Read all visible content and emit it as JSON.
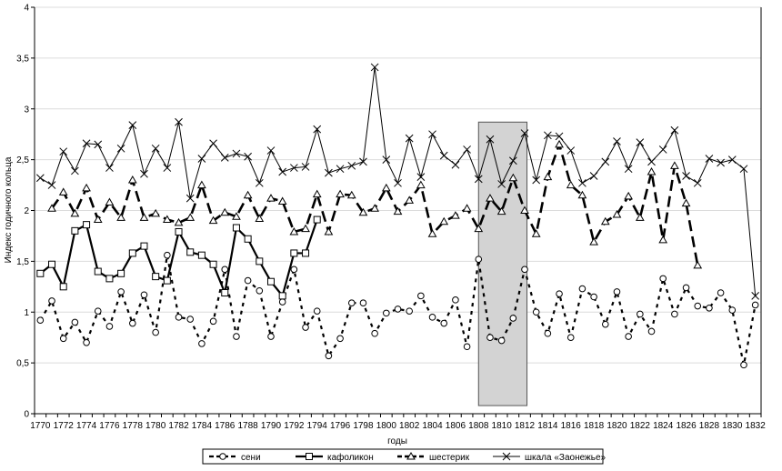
{
  "chart_data": {
    "type": "line",
    "title": "",
    "xlabel": "годы",
    "ylabel": "Индекс годичного кольца",
    "ylim": [
      0,
      4
    ],
    "yticks": [
      "0",
      "0,5",
      "1",
      "1,5",
      "2",
      "2,5",
      "3",
      "3,5",
      "4"
    ],
    "xrange": [
      1770,
      1832
    ],
    "xtick_labels": [
      "1770",
      "1772",
      "1774",
      "1776",
      "1778",
      "1780",
      "1782",
      "1784",
      "1786",
      "1788",
      "1790",
      "1792",
      "1794",
      "1796",
      "1798",
      "1800",
      "1802",
      "1804",
      "1806",
      "1808",
      "1810",
      "1812",
      "1814",
      "1816",
      "1818",
      "1820",
      "1822",
      "1824",
      "1826",
      "1828",
      "1830",
      "1832"
    ],
    "grid": true,
    "legend_placement": "bottom",
    "highlight": {
      "x": [
        1808,
        1812.2
      ],
      "y": [
        0.08,
        2.87
      ],
      "color": "#d3d3d3"
    },
    "series": [
      {
        "name": "сени",
        "marker": "circle",
        "line": "dotted",
        "start": 1770,
        "values": [
          0.92,
          1.11,
          0.74,
          0.9,
          0.7,
          1.01,
          0.86,
          1.2,
          0.89,
          1.17,
          0.8,
          1.56,
          0.95,
          0.93,
          0.69,
          0.91,
          1.42,
          0.76,
          1.31,
          1.21,
          0.76,
          1.1,
          1.42,
          0.85,
          1.01,
          0.57,
          0.74,
          1.09,
          1.09,
          0.79,
          0.99,
          1.03,
          1.01,
          1.16,
          0.95,
          0.89,
          1.12,
          0.66,
          1.52,
          0.75,
          0.72,
          0.94,
          1.42,
          1.0,
          0.79,
          1.18,
          0.75,
          1.23,
          1.15,
          0.88,
          1.2,
          0.76,
          0.98,
          0.81,
          1.33,
          0.98,
          1.24,
          1.06,
          1.04,
          1.19,
          1.02,
          0.48,
          1.07
        ]
      },
      {
        "name": "кафоликон",
        "marker": "square",
        "line": "solid-thick",
        "start": 1770,
        "values": [
          1.38,
          1.47,
          1.25,
          1.8,
          1.86,
          1.4,
          1.33,
          1.38,
          1.58,
          1.65,
          1.35,
          1.31,
          1.79,
          1.59,
          1.56,
          1.47,
          1.19,
          1.83,
          1.72,
          1.5,
          1.3,
          1.16,
          1.58,
          1.58,
          1.91
        ]
      },
      {
        "name": "шестерик",
        "marker": "triangle",
        "line": "dashed",
        "start": 1771,
        "values": [
          2.02,
          2.18,
          1.97,
          2.22,
          1.91,
          2.08,
          1.93,
          2.3,
          1.93,
          1.97,
          1.91,
          1.88,
          1.93,
          2.25,
          1.9,
          1.98,
          1.94,
          2.15,
          1.92,
          2.12,
          2.09,
          1.79,
          1.82,
          2.16,
          1.79,
          2.16,
          2.15,
          1.98,
          2.02,
          2.22,
          1.99,
          2.1,
          2.25,
          1.77,
          1.89,
          1.95,
          2.02,
          1.82,
          2.12,
          1.99,
          2.32,
          2.0,
          1.77,
          2.33,
          2.65,
          2.25,
          2.15,
          1.69,
          1.89,
          1.96,
          2.14,
          1.93,
          2.38,
          1.71,
          2.44,
          2.07,
          1.46
        ]
      },
      {
        "name": "шкала «Заонежье»",
        "marker": "x",
        "line": "solid-thin",
        "start": 1770,
        "values": [
          2.32,
          2.25,
          2.58,
          2.39,
          2.66,
          2.65,
          2.42,
          2.61,
          2.84,
          2.36,
          2.61,
          2.42,
          2.87,
          2.12,
          2.51,
          2.66,
          2.52,
          2.56,
          2.53,
          2.27,
          2.59,
          2.38,
          2.42,
          2.43,
          2.8,
          2.37,
          2.41,
          2.44,
          2.48,
          3.41,
          2.5,
          2.27,
          2.71,
          2.33,
          2.75,
          2.54,
          2.45,
          2.6,
          2.31,
          2.7,
          2.26,
          2.49,
          2.76,
          2.3,
          2.74,
          2.73,
          2.59,
          2.27,
          2.34,
          2.48,
          2.68,
          2.41,
          2.67,
          2.48,
          2.6,
          2.79,
          2.34,
          2.27,
          2.51,
          2.47,
          2.5,
          2.41,
          1.16
        ]
      }
    ]
  }
}
